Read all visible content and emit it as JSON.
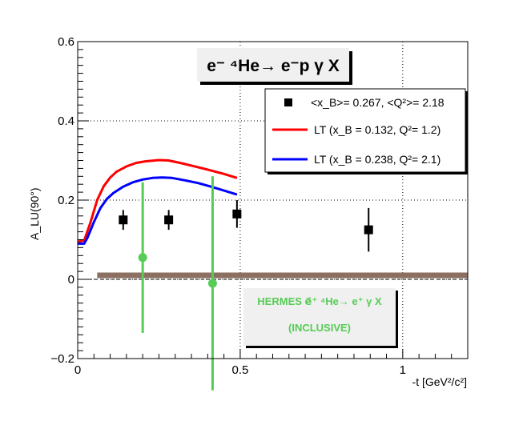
{
  "chart_data": {
    "type": "scatter",
    "title": "e⁻ ⁴He→ e⁻p γ X",
    "xlabel": "-t [GeV²/c²]",
    "ylabel": "A_LU(90°)",
    "xlim": [
      0,
      1.2
    ],
    "ylim": [
      -0.2,
      0.6
    ],
    "x_ticks": [
      "0",
      "0.5",
      "1"
    ],
    "y_ticks": [
      "−0.2",
      "0",
      "0.2",
      "0.4",
      "0.6"
    ],
    "grid": true,
    "legend_position": "top-right",
    "series": [
      {
        "name": "<x_B>= 0.267, <Q²>= 2.18",
        "kind": "points",
        "color": "#000000",
        "x": [
          0.14,
          0.28,
          0.49,
          0.895
        ],
        "y": [
          0.15,
          0.15,
          0.165,
          0.125
        ],
        "yerr": [
          0.025,
          0.025,
          0.035,
          0.055
        ]
      },
      {
        "name": "LT (x_B = 0.132, Q²= 1.2)",
        "kind": "line",
        "color": "#ff0000",
        "x": [
          0.0,
          0.02,
          0.04,
          0.06,
          0.08,
          0.1,
          0.12,
          0.15,
          0.18,
          0.21,
          0.25,
          0.28,
          0.32,
          0.36,
          0.4,
          0.45,
          0.49
        ],
        "y": [
          0.095,
          0.098,
          0.145,
          0.2,
          0.235,
          0.257,
          0.272,
          0.285,
          0.294,
          0.298,
          0.301,
          0.3,
          0.293,
          0.285,
          0.277,
          0.266,
          0.256
        ]
      },
      {
        "name": "LT (x_B = 0.238, Q²= 2.1)",
        "kind": "line",
        "color": "#0000ff",
        "x": [
          0.0,
          0.02,
          0.03,
          0.05,
          0.07,
          0.09,
          0.11,
          0.14,
          0.17,
          0.2,
          0.23,
          0.26,
          0.29,
          0.33,
          0.37,
          0.41,
          0.45,
          0.49
        ],
        "y": [
          0.09,
          0.09,
          0.105,
          0.145,
          0.18,
          0.203,
          0.218,
          0.234,
          0.245,
          0.252,
          0.256,
          0.257,
          0.256,
          0.25,
          0.243,
          0.234,
          0.224,
          0.214
        ]
      },
      {
        "name": "HERMES e⃗⁺ ⁴He→ e⁺ γ X (INCLUSIVE)",
        "kind": "points",
        "color": "#55cc55",
        "x": [
          0.2,
          0.415
        ],
        "y": [
          0.055,
          -0.01
        ],
        "yerr": [
          0.19,
          0.27
        ]
      }
    ],
    "band": {
      "y": 0.01,
      "x_start": 0.06,
      "x_end": 1.2,
      "color": "#8b6f60"
    },
    "annotation": {
      "line1": "HERMES e⃗⁺ ⁴He→ e⁺ γ X",
      "line2": "(INCLUSIVE)"
    }
  }
}
